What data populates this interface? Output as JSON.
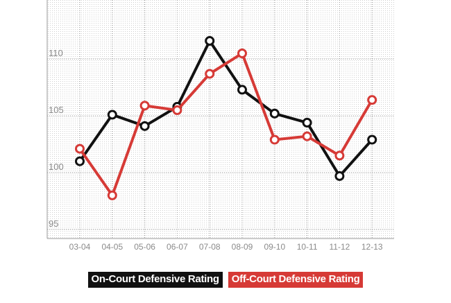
{
  "chart_data": {
    "type": "line",
    "categories": [
      "03-04",
      "04-05",
      "05-06",
      "06-07",
      "07-08",
      "08-09",
      "09-10",
      "10-11",
      "11-12",
      "12-13"
    ],
    "yticks": [
      95,
      100,
      105,
      110
    ],
    "ylim": [
      94.2,
      115.2
    ],
    "grid": true,
    "legend_position": "bottom-center",
    "series": [
      {
        "name": "On-Court Defensive Rating",
        "color": "#111111",
        "values": [
          101.0,
          105.1,
          104.1,
          105.8,
          111.6,
          107.3,
          105.2,
          104.4,
          99.7,
          102.9
        ]
      },
      {
        "name": "Off-Court Defensive Rating",
        "color": "#d63a36",
        "values": [
          102.1,
          98.0,
          105.9,
          105.5,
          108.7,
          110.5,
          102.9,
          103.2,
          101.5,
          106.4
        ]
      }
    ]
  }
}
